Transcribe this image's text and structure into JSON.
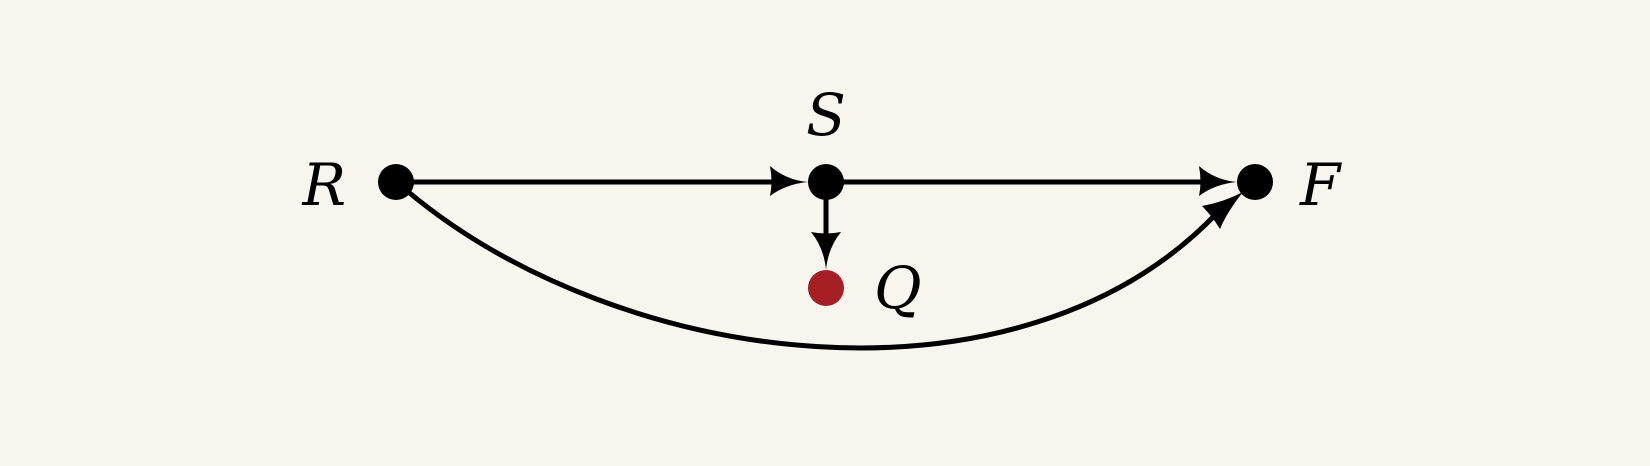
{
  "colors": {
    "background": "#f8f5ef",
    "edge": "#000000",
    "node_default": "#000000",
    "node_highlight": "#a61f24"
  },
  "nodes": {
    "R": {
      "label": "R",
      "color": "#000000"
    },
    "S": {
      "label": "S",
      "color": "#000000"
    },
    "F": {
      "label": "F",
      "color": "#000000"
    },
    "Q": {
      "label": "Q",
      "color": "#a61f24"
    }
  },
  "edges": [
    {
      "from": "R",
      "to": "S",
      "style": "straight"
    },
    {
      "from": "S",
      "to": "F",
      "style": "straight"
    },
    {
      "from": "S",
      "to": "Q",
      "style": "straight"
    },
    {
      "from": "R",
      "to": "F",
      "style": "curved"
    }
  ]
}
